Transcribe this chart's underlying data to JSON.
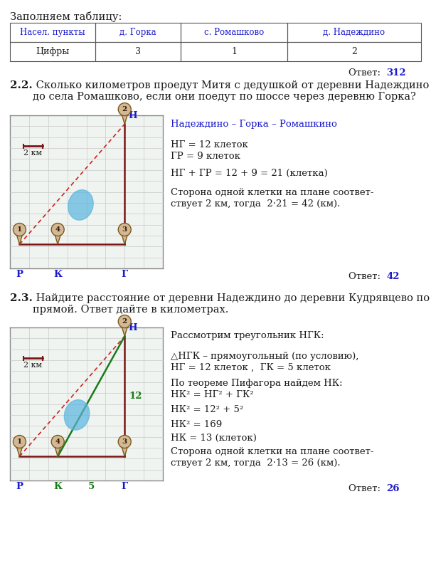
{
  "title_section1": "Заполняем таблицу:",
  "table_headers": [
    "Насел. пункты",
    "д. Горка",
    "с. Ромашково",
    "д. Надеждино"
  ],
  "table_row1": [
    "Цифры",
    "3",
    "1",
    "2"
  ],
  "answer1_prefix": "Ответ: ",
  "answer1_bold": "312",
  "section2_label": "2.2.",
  "section2_text": " Сколько километров проедут Митя с дедушкой от деревни Надеждино\nдо села Ромашково, если они поедут по шоссе через деревню Горка?",
  "map2_route_label": "Надеждино – Горка – Ромашкино",
  "map2_line1": "НГ = 12 клеток",
  "map2_line2": "ГР = 9 клеток",
  "map2_line3": "НГ + ГР = 12 + 9 = 21 (клетка)",
  "map2_line4a": "Сторона одной клетки на плане соответ-",
  "map2_line4b": "ствует 2 км, тогда  2·21 = 42 (км).",
  "answer2_prefix": "Ответ: ",
  "answer2_bold": "42",
  "section3_label": "2.3.",
  "section3_text": " Найдите расстояние от деревни Надеждино до деревни Кудрявцево по\nпрямой. Ответ дайте в километрах.",
  "map3_line1": "Рассмотрим треугольник НГК:",
  "map3_line2a": "△НГК – прямоугольный (по условию),",
  "map3_line2b": "НГ = 12 клеток ,  ГК = 5 клеток",
  "map3_line3a": "По теореме Пифагора найдем НК:",
  "map3_line3b": "НК² = НГ² + ГК²",
  "map3_line4": "НК² = 12² + 5²",
  "map3_line5": "НК² = 169",
  "map3_line6": "НК = 13 (клеток)",
  "map3_line7a": "Сторона одной клетки на плане соответ-",
  "map3_line7b": "ствует 2 км, тогда  2·13 = 26 (км).",
  "answer3_prefix": "Ответ: ",
  "answer3_bold": "26",
  "grid_cols": 8,
  "grid_rows": 14,
  "bg_color": "#ffffff",
  "grid_color": "#c8c8c8",
  "grid_bg": "#f0f4f0",
  "map_border_color": "#888888",
  "dark_red": "#7a1515",
  "blue_label": "#1a1acd",
  "green_label": "#1a7a1a",
  "pin_fill": "#d4b896",
  "pin_border": "#7a5a1a",
  "lake_color": "#5ab4e0",
  "dashed_red": "#cc2222",
  "scale_bar_color": "#7a1515",
  "text_color": "#1a1a1a",
  "table_text_color": "#1a1acd"
}
